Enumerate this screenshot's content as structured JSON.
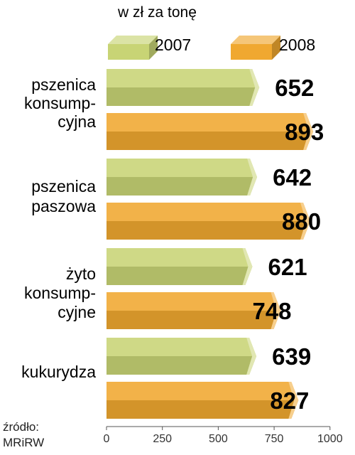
{
  "chart_data": {
    "type": "bar",
    "orientation": "horizontal",
    "bar_style": "3d",
    "title": "",
    "unit_label": "w zł za tonę",
    "xlim": [
      0,
      1000
    ],
    "xticks": [
      "0",
      "250",
      "500",
      "750",
      "1000"
    ],
    "legend_position": "top",
    "categories": [
      [
        "pszenica",
        "konsump-",
        "cyjna"
      ],
      [
        "pszenica",
        "paszowa"
      ],
      [
        "żyto",
        "konsump-",
        "cyjne"
      ],
      [
        "kukurydza"
      ]
    ],
    "series": [
      {
        "name": "2007",
        "color": "#c8d475",
        "values": [
          652,
          642,
          621,
          639
        ]
      },
      {
        "name": "2008",
        "color": "#f0a830",
        "values": [
          893,
          880,
          748,
          827
        ]
      }
    ],
    "source": [
      "źródło:",
      "MRiRW"
    ]
  }
}
